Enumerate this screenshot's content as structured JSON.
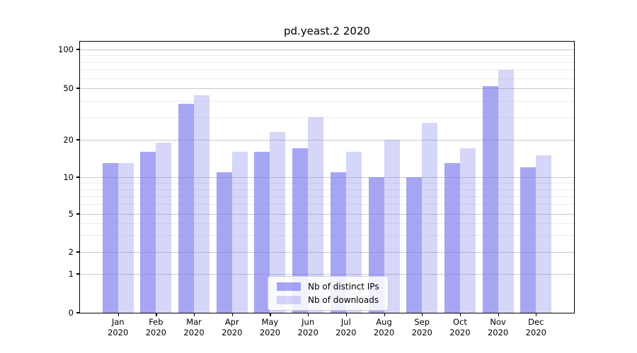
{
  "chart_data": {
    "type": "bar",
    "title": "pd.yeast.2 2020",
    "categories": [
      "Jan 2020",
      "Feb 2020",
      "Mar 2020",
      "Apr 2020",
      "May 2020",
      "Jun 2020",
      "Jul 2020",
      "Aug 2020",
      "Sep 2020",
      "Oct 2020",
      "Nov 2020",
      "Dec 2020"
    ],
    "month_labels": [
      "Jan",
      "Feb",
      "Mar",
      "Apr",
      "May",
      "Jun",
      "Jul",
      "Aug",
      "Sep",
      "Oct",
      "Nov",
      "Dec"
    ],
    "year_label": "2020",
    "series": [
      {
        "name": "Nb of distinct IPs",
        "color": "#a9a9f3",
        "fill": "rgba(120,120,235,0.66)",
        "values": [
          13,
          16,
          38,
          11,
          16,
          17,
          11,
          10,
          10,
          13,
          52,
          12
        ]
      },
      {
        "name": "Nb of downloads",
        "color": "#d9d9f9",
        "fill": "rgba(120,120,235,0.30)",
        "values": [
          13,
          19,
          44,
          16,
          23,
          30,
          16,
          20,
          27,
          17,
          69,
          15
        ]
      }
    ],
    "yticks": [
      0,
      1,
      2,
      5,
      10,
      20,
      50,
      100
    ],
    "minor_yticks": [
      3,
      4,
      6,
      7,
      8,
      9,
      30,
      40,
      60,
      70,
      80,
      90
    ],
    "ylim": [
      0,
      110
    ],
    "y_scale": "symlog-like (linear near 0, logarithmic above)",
    "grid": true,
    "grid_major_color": "#c9c9c9",
    "grid_minor_color": "#ececec",
    "legend_position": "inside-bottom-center",
    "axis_color": "#000000",
    "background_color": "#ffffff"
  }
}
